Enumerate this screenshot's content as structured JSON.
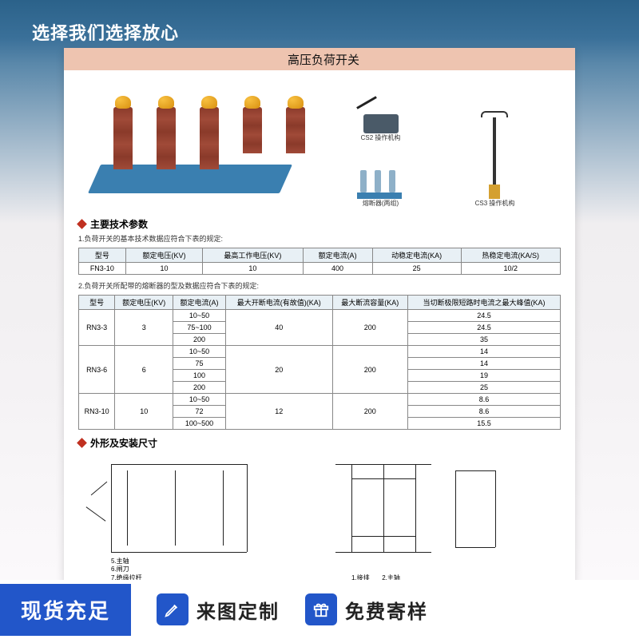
{
  "overlay_text": "选择我们选择放心",
  "title": "高压负荷开关",
  "mini_labels": {
    "cs2": "CS2 操作机构",
    "fuse": "熔断器(两组)",
    "cs3": "CS3 操作机构"
  },
  "section1": {
    "header": "主要技术参数",
    "note": "1.负荷开关的基本技术数据应符合下表的规定:",
    "table": {
      "columns": [
        "型号",
        "额定电压(KV)",
        "最高工作电压(KV)",
        "额定电流(A)",
        "动稳定电流(KA)",
        "热稳定电流(KA/S)"
      ],
      "rows": [
        [
          "FN3-10",
          "10",
          "10",
          "400",
          "25",
          "10/2"
        ]
      ]
    }
  },
  "section2": {
    "note": "2.负荷开关所配带的熔断器的型及数据应符合下表的规定:",
    "table": {
      "columns": [
        "型号",
        "额定电压(KV)",
        "额定电流(A)",
        "最大开断电流(有故值)(KA)",
        "最大断流容量(KA)",
        "当切断极限短路时电流之最大峰值(KA)"
      ],
      "rows": [
        [
          "RN3-3",
          "3",
          "10~50",
          "40",
          "200",
          "24.5"
        ],
        [
          "",
          "",
          "75~100",
          "",
          "",
          "24.5"
        ],
        [
          "",
          "",
          "200",
          "",
          "",
          "35"
        ],
        [
          "RN3-6",
          "6",
          "10~50",
          "20",
          "200",
          "14"
        ],
        [
          "",
          "",
          "75",
          "",
          "",
          "14"
        ],
        [
          "",
          "",
          "100",
          "",
          "",
          "19"
        ],
        [
          "",
          "",
          "200",
          "",
          "",
          "25"
        ],
        [
          "RN3-10",
          "10",
          "10~50",
          "12",
          "200",
          "8.6"
        ],
        [
          "",
          "",
          "72",
          "",
          "",
          "8.6"
        ],
        [
          "",
          "",
          "100~500",
          "",
          "",
          "15.5"
        ]
      ],
      "rowspans": {
        "0": {
          "col0": 3,
          "col1": 3,
          "col3": 3,
          "col4": 3
        },
        "3": {
          "col0": 4,
          "col1": 4,
          "col3": 4,
          "col4": 4
        },
        "7": {
          "col0": 3,
          "col1": 3,
          "col3": 3,
          "col4": 3
        }
      }
    }
  },
  "section3": {
    "header": "外形及安装尺寸",
    "legend_left": [
      "5.主轴",
      "6.闸刀",
      "7.绝缘拉杆"
    ],
    "legend_right": [
      "1.接排",
      "2.主轴"
    ]
  },
  "footer": {
    "left": "现货充足",
    "items": [
      {
        "text": "来图定制"
      },
      {
        "text": "免费寄样"
      }
    ]
  },
  "colors": {
    "title_bg": "#eec4b0",
    "accent": "#c03020",
    "brand_blue": "#2256c9",
    "table_header": "#e8f0f5"
  }
}
